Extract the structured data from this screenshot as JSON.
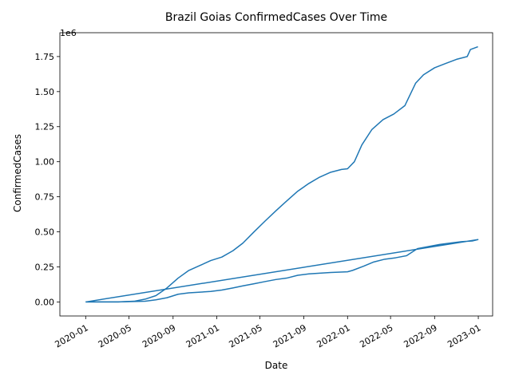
{
  "chart_data": {
    "type": "line",
    "title": "Brazil Goias ConfirmedCases Over Time",
    "xlabel": "Date",
    "ylabel": "ConfirmedCases",
    "y_offset_label": "1e6",
    "xlim": [
      "2019-10-21",
      "2023-02-10"
    ],
    "ylim": [
      -100000,
      1920000
    ],
    "x_ticks": [
      {
        "date": "2020-01-01",
        "label": "2020-01"
      },
      {
        "date": "2020-05-01",
        "label": "2020-05"
      },
      {
        "date": "2020-09-01",
        "label": "2020-09"
      },
      {
        "date": "2021-01-01",
        "label": "2021-01"
      },
      {
        "date": "2021-05-01",
        "label": "2021-05"
      },
      {
        "date": "2021-09-01",
        "label": "2021-09"
      },
      {
        "date": "2022-01-01",
        "label": "2022-01"
      },
      {
        "date": "2022-05-01",
        "label": "2022-05"
      },
      {
        "date": "2022-09-01",
        "label": "2022-09"
      },
      {
        "date": "2023-01-01",
        "label": "2023-01"
      }
    ],
    "y_ticks": [
      {
        "value": 0,
        "label": "0.00"
      },
      {
        "value": 250000,
        "label": "0.25"
      },
      {
        "value": 500000,
        "label": "0.50"
      },
      {
        "value": 750000,
        "label": "0.75"
      },
      {
        "value": 1000000,
        "label": "1.00"
      },
      {
        "value": 1250000,
        "label": "1.25"
      },
      {
        "value": 1500000,
        "label": "1.50"
      },
      {
        "value": 1750000,
        "label": "1.75"
      }
    ],
    "grid": false,
    "legend": "none",
    "series": [
      {
        "color": "#1f77b4",
        "points": [
          [
            "2020-01-01",
            0
          ],
          [
            "2020-04-01",
            500
          ],
          [
            "2020-05-15",
            5000
          ],
          [
            "2020-06-15",
            20000
          ],
          [
            "2020-07-15",
            45000
          ],
          [
            "2020-08-15",
            100000
          ],
          [
            "2020-09-15",
            170000
          ],
          [
            "2020-10-15",
            225000
          ],
          [
            "2020-11-15",
            260000
          ],
          [
            "2020-12-15",
            295000
          ],
          [
            "2021-01-15",
            320000
          ],
          [
            "2021-02-15",
            365000
          ],
          [
            "2021-03-15",
            420000
          ],
          [
            "2021-04-15",
            500000
          ],
          [
            "2021-05-15",
            575000
          ],
          [
            "2021-06-15",
            650000
          ],
          [
            "2021-07-15",
            720000
          ],
          [
            "2021-08-15",
            790000
          ],
          [
            "2021-09-15",
            845000
          ],
          [
            "2021-10-15",
            890000
          ],
          [
            "2021-11-15",
            925000
          ],
          [
            "2021-12-15",
            945000
          ],
          [
            "2022-01-01",
            950000
          ],
          [
            "2022-01-20",
            1000000
          ],
          [
            "2022-02-10",
            1120000
          ],
          [
            "2022-03-10",
            1230000
          ],
          [
            "2022-04-10",
            1300000
          ],
          [
            "2022-05-10",
            1340000
          ],
          [
            "2022-06-10",
            1400000
          ],
          [
            "2022-07-10",
            1560000
          ],
          [
            "2022-08-01",
            1620000
          ],
          [
            "2022-09-01",
            1670000
          ],
          [
            "2022-10-01",
            1700000
          ],
          [
            "2022-11-01",
            1730000
          ],
          [
            "2022-12-01",
            1750000
          ],
          [
            "2022-12-10",
            1800000
          ],
          [
            "2022-12-31",
            1820000
          ]
        ]
      },
      {
        "color": "#1f77b4",
        "points": [
          [
            "2020-01-01",
            0
          ],
          [
            "2020-04-01",
            500
          ],
          [
            "2020-06-15",
            5000
          ],
          [
            "2020-07-15",
            15000
          ],
          [
            "2020-08-15",
            30000
          ],
          [
            "2020-09-15",
            55000
          ],
          [
            "2020-10-15",
            65000
          ],
          [
            "2020-12-15",
            75000
          ],
          [
            "2021-01-15",
            85000
          ],
          [
            "2021-02-15",
            100000
          ],
          [
            "2021-03-15",
            115000
          ],
          [
            "2021-04-15",
            130000
          ],
          [
            "2021-05-15",
            145000
          ],
          [
            "2021-06-15",
            160000
          ],
          [
            "2021-07-15",
            170000
          ],
          [
            "2021-08-15",
            190000
          ],
          [
            "2021-09-15",
            200000
          ],
          [
            "2021-10-15",
            205000
          ],
          [
            "2021-11-15",
            210000
          ],
          [
            "2022-01-01",
            215000
          ],
          [
            "2022-01-15",
            225000
          ],
          [
            "2022-02-15",
            255000
          ],
          [
            "2022-03-15",
            285000
          ],
          [
            "2022-04-15",
            305000
          ],
          [
            "2022-05-15",
            315000
          ],
          [
            "2022-06-15",
            330000
          ],
          [
            "2022-07-15",
            380000
          ],
          [
            "2022-08-15",
            395000
          ],
          [
            "2022-09-15",
            410000
          ],
          [
            "2022-10-15",
            420000
          ],
          [
            "2022-11-15",
            430000
          ],
          [
            "2022-12-15",
            435000
          ],
          [
            "2022-12-31",
            445000
          ],
          [
            "2020-01-01",
            0
          ]
        ]
      }
    ]
  }
}
